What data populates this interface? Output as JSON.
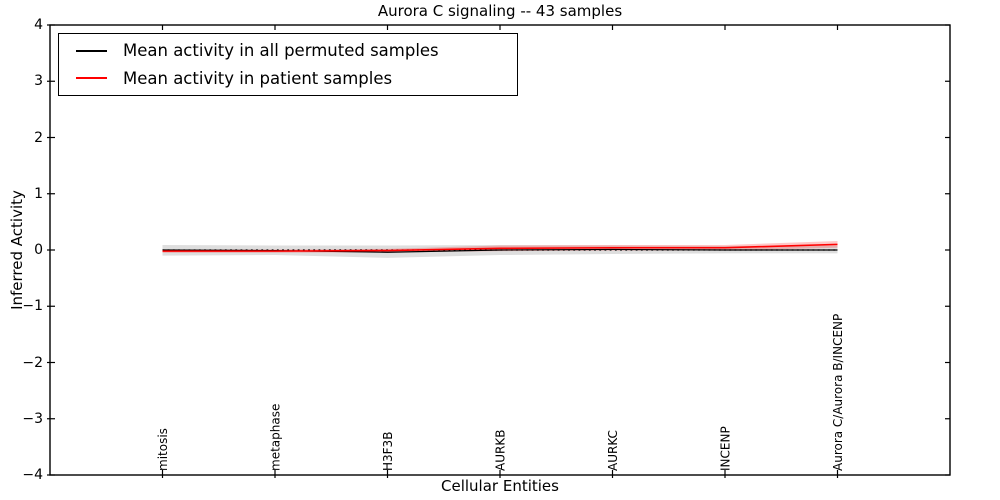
{
  "chart_data": {
    "type": "line",
    "title": "Aurora C signaling -- 43 samples",
    "xlabel": "Cellular Entities",
    "ylabel": "Inferred Activity",
    "ylim": [
      -4,
      4
    ],
    "yticks": [
      -4,
      -3,
      -2,
      -1,
      0,
      1,
      2,
      3,
      4
    ],
    "ytick_labels": [
      "−4",
      "−3",
      "−2",
      "−1",
      "0",
      "1",
      "2",
      "3",
      "4"
    ],
    "categories": [
      "mitosis",
      "metaphase",
      "H3F3B",
      "AURKB",
      "AURKC",
      "INCENP",
      "Aurora C/Aurora B/INCENP"
    ],
    "grid": false,
    "legend_position": "upper left",
    "zero_reference_line": {
      "y": 0,
      "style": "dotted",
      "color": "#000000"
    },
    "series": [
      {
        "name": "Mean activity in all permuted samples",
        "color": "#000000",
        "values": [
          0.0,
          -0.01,
          -0.04,
          0.0,
          0.01,
          0.0,
          0.0
        ],
        "band_upper": [
          0.09,
          0.08,
          0.08,
          0.09,
          0.08,
          0.07,
          0.08
        ],
        "band_lower": [
          -0.1,
          -0.09,
          -0.14,
          -0.09,
          -0.07,
          -0.06,
          -0.06
        ],
        "band_color": "rgba(0,0,0,0.13)"
      },
      {
        "name": "Mean activity in patient samples",
        "color": "#ff0000",
        "values": [
          -0.02,
          -0.02,
          -0.01,
          0.03,
          0.04,
          0.04,
          0.1
        ],
        "band_upper": [
          0.01,
          0.01,
          0.02,
          0.08,
          0.09,
          0.09,
          0.16
        ],
        "band_lower": [
          -0.05,
          -0.05,
          -0.04,
          -0.02,
          -0.01,
          -0.01,
          0.04
        ],
        "band_color": "rgba(255,0,0,0.22)"
      }
    ]
  }
}
